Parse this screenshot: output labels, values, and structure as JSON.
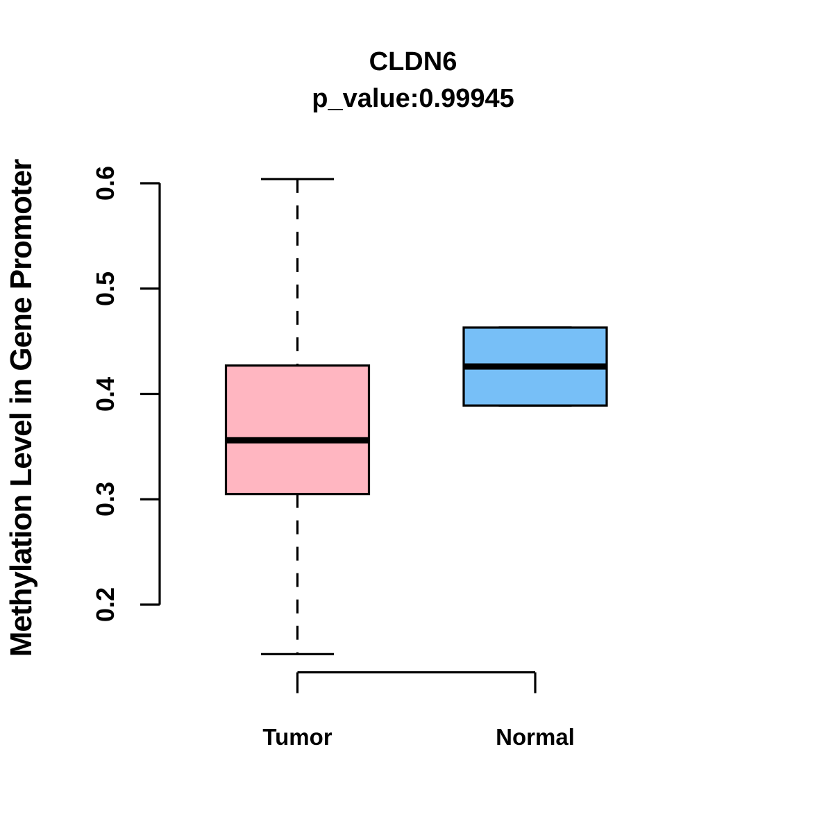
{
  "chart_data": {
    "type": "boxplot",
    "title": "CLDN6",
    "subtitle": "p_value:0.99945",
    "xlabel": "",
    "ylabel": "Methylation Level in Gene Promoter",
    "categories": [
      "Tumor",
      "Normal"
    ],
    "y_ticks": [
      0.2,
      0.3,
      0.4,
      0.5,
      0.6
    ],
    "ylim": [
      0.14,
      0.62
    ],
    "grid": false,
    "legend": false,
    "series": [
      {
        "name": "Tumor",
        "fill": "#FFB6C1",
        "min": 0.153,
        "q1": 0.305,
        "median": 0.356,
        "q3": 0.427,
        "max": 0.604
      },
      {
        "name": "Normal",
        "fill": "#77BFF7",
        "min": 0.389,
        "q1": 0.389,
        "median": 0.426,
        "q3": 0.463,
        "max": 0.463
      }
    ],
    "style": {
      "box_border": "#000000",
      "median_color": "#000000",
      "whisker_color": "#000000",
      "whisker_linetype": "dashed",
      "text_color": "#000000",
      "background": "#FFFFFF"
    }
  }
}
